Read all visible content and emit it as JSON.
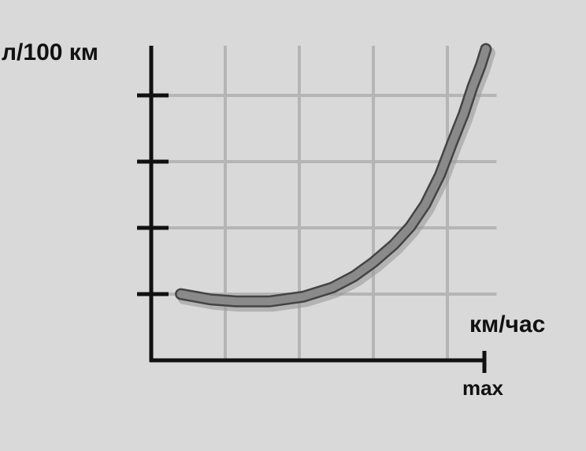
{
  "chart_data": {
    "type": "line",
    "y_label": "л/100 км",
    "x_label": "км/час",
    "x": [
      0.4,
      0.8,
      1.15,
      1.6,
      2.05,
      2.45,
      2.74,
      3.0,
      3.28,
      3.5,
      3.7,
      3.9,
      4.07,
      4.22,
      4.34,
      4.45,
      4.52
    ],
    "series": [
      {
        "color": "#8a8a8a",
        "values": [
          1.0,
          0.92,
          0.89,
          0.89,
          0.96,
          1.1,
          1.27,
          1.48,
          1.75,
          2.02,
          2.35,
          2.8,
          3.3,
          3.72,
          4.13,
          4.45,
          4.7
        ]
      }
    ],
    "xlim": [
      0,
      4.6
    ],
    "ylim": [
      0,
      4.75
    ],
    "xgrid": [
      1,
      2,
      3,
      4
    ],
    "ygrid": [
      1,
      2,
      3,
      4
    ],
    "xticks": [
      {
        "value": 4.5,
        "label": "max"
      }
    ],
    "grid": true
  }
}
